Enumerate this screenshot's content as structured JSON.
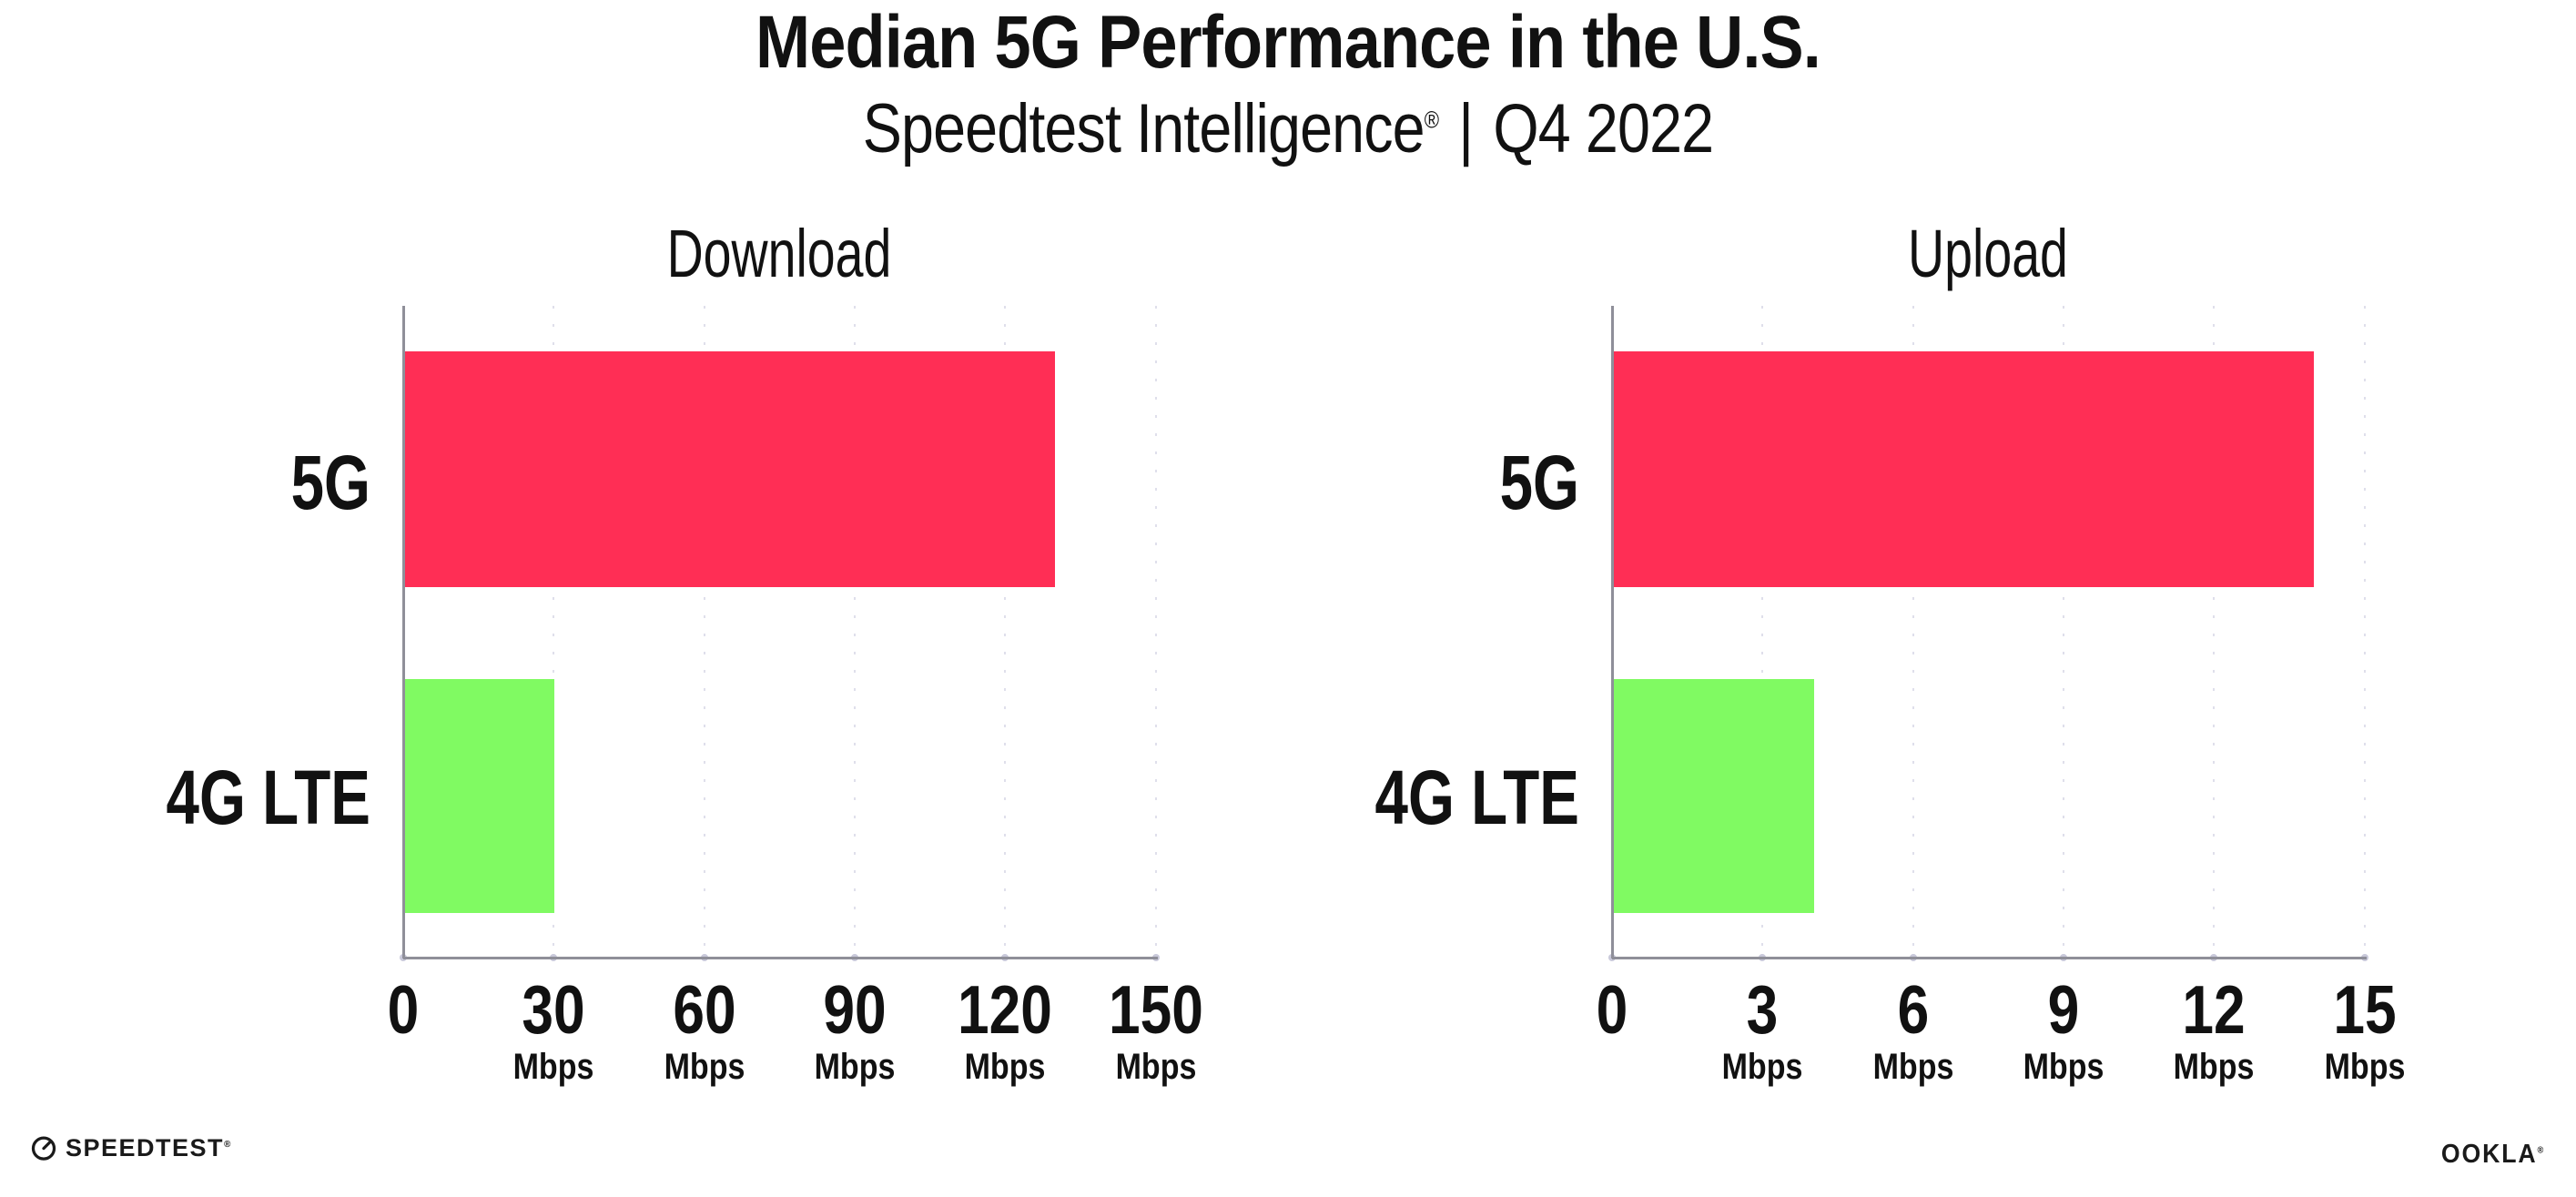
{
  "header": {
    "title": "Median 5G Performance in the U.S.",
    "subtitle_brand": "Speedtest Intelligence",
    "subtitle_reg": "®",
    "subtitle_divider": "|",
    "subtitle_period": "Q4 2022"
  },
  "chart_data": [
    {
      "type": "bar",
      "orientation": "horizontal",
      "title": "Download",
      "categories": [
        "5G",
        "4G LTE"
      ],
      "values": [
        129.5,
        29.7
      ],
      "unit": "Mbps",
      "xlim": [
        0,
        150
      ],
      "xticks": [
        0,
        30,
        60,
        90,
        120,
        150
      ],
      "grid": "dotted-vertical",
      "bar_colors": [
        "#FF2E55",
        "#80FA62"
      ]
    },
    {
      "type": "bar",
      "orientation": "horizontal",
      "title": "Upload",
      "categories": [
        "5G",
        "4G LTE"
      ],
      "values": [
        13.95,
        3.99
      ],
      "unit": "Mbps",
      "xlim": [
        0,
        15
      ],
      "xticks": [
        0,
        3,
        6,
        9,
        12,
        15
      ],
      "grid": "dotted-vertical",
      "bar_colors": [
        "#FF2E55",
        "#80FA62"
      ]
    }
  ],
  "colors": {
    "bar_5g": "#FF2E55",
    "bar_4g": "#80FA62",
    "gridline": "#dfdfeb",
    "axis": "#8f8f99",
    "text": "#111111"
  },
  "footer": {
    "speedtest_label": "SPEEDTEST",
    "speedtest_reg": "®",
    "speedtest_icon": "gauge-icon",
    "ookla_label": "OOKLA",
    "ookla_reg": "®"
  }
}
